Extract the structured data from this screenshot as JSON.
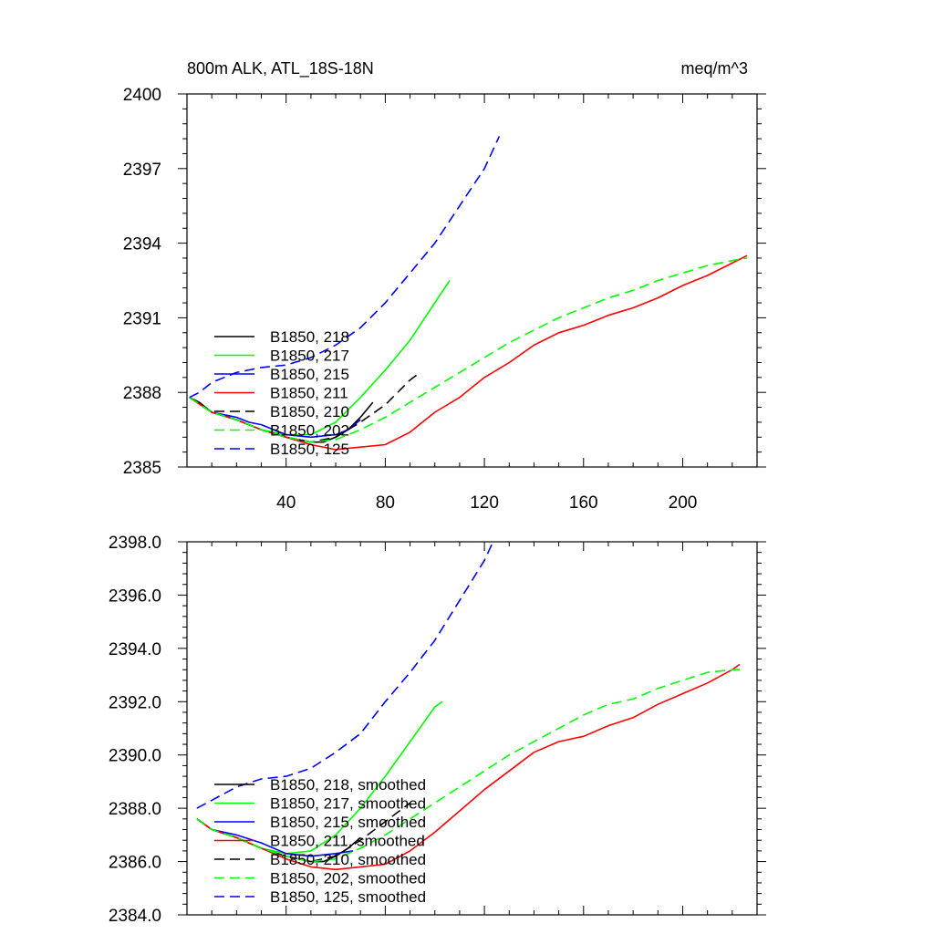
{
  "chart_data": [
    {
      "type": "line",
      "title": "800m ALK, ATL_18S-18N",
      "units": "meq/m^3",
      "xlabel": "",
      "ylabel": "",
      "xlim": [
        0,
        230
      ],
      "ylim": [
        2385,
        2400
      ],
      "xticks": [
        40,
        80,
        120,
        160,
        200
      ],
      "xtick_labels": [
        "40",
        "80",
        "120",
        "160",
        "200"
      ],
      "yticks": [
        2385,
        2388,
        2391,
        2394,
        2397,
        2400
      ],
      "ytick_labels": [
        "2385",
        "2388",
        "2391",
        "2394",
        "2397",
        "2400"
      ],
      "grid": false,
      "legend_position": "lower-left",
      "series": [
        {
          "name": "B1850, 218",
          "color": "#000000",
          "dash": "solid",
          "x": [
            1,
            5,
            10,
            20,
            30,
            40,
            50,
            55,
            60,
            65,
            70,
            75
          ],
          "y": [
            2387.8,
            2387.6,
            2387.2,
            2386.9,
            2386.5,
            2386.2,
            2386.0,
            2386.0,
            2386.2,
            2386.5,
            2387.0,
            2387.6
          ]
        },
        {
          "name": "B1850, 217",
          "color": "#00ff00",
          "dash": "solid",
          "x": [
            1,
            10,
            20,
            30,
            40,
            50,
            60,
            70,
            80,
            90,
            100,
            106
          ],
          "y": [
            2387.8,
            2387.2,
            2386.9,
            2386.5,
            2386.3,
            2386.3,
            2386.8,
            2387.8,
            2388.9,
            2390.1,
            2391.6,
            2392.5
          ]
        },
        {
          "name": "B1850, 215",
          "color": "#0000ff",
          "dash": "solid",
          "x": [
            1,
            10,
            20,
            25,
            30,
            40,
            50,
            60,
            65,
            70
          ],
          "y": [
            2387.8,
            2387.2,
            2387.0,
            2386.8,
            2386.7,
            2386.3,
            2386.2,
            2386.3,
            2386.5,
            2386.9
          ]
        },
        {
          "name": "B1850, 211",
          "color": "#ff0000",
          "dash": "solid",
          "x": [
            1,
            10,
            20,
            30,
            40,
            50,
            60,
            70,
            80,
            90,
            100,
            110,
            120,
            130,
            140,
            150,
            160,
            170,
            180,
            190,
            200,
            210,
            220,
            226
          ],
          "y": [
            2387.8,
            2387.2,
            2386.9,
            2386.5,
            2386.2,
            2385.9,
            2385.7,
            2385.8,
            2385.9,
            2386.4,
            2387.2,
            2387.8,
            2388.6,
            2389.2,
            2389.9,
            2390.4,
            2390.7,
            2391.1,
            2391.4,
            2391.8,
            2392.3,
            2392.7,
            2393.2,
            2393.5
          ]
        },
        {
          "name": "B1850, 210",
          "color": "#000000",
          "dash": "dashed",
          "x": [
            1,
            10,
            20,
            30,
            40,
            50,
            60,
            70,
            80,
            85,
            90,
            94
          ],
          "y": [
            2387.8,
            2387.2,
            2386.9,
            2386.5,
            2386.2,
            2386.0,
            2386.2,
            2386.8,
            2387.5,
            2388.0,
            2388.5,
            2388.8
          ]
        },
        {
          "name": "B1850, 202",
          "color": "#00ff00",
          "dash": "dashed",
          "x": [
            1,
            10,
            20,
            30,
            40,
            50,
            60,
            70,
            80,
            90,
            100,
            110,
            120,
            130,
            140,
            150,
            160,
            170,
            180,
            190,
            200,
            210,
            220,
            226
          ],
          "y": [
            2387.8,
            2387.2,
            2386.9,
            2386.5,
            2386.2,
            2386.0,
            2386.1,
            2386.5,
            2387.0,
            2387.6,
            2388.2,
            2388.8,
            2389.4,
            2390.0,
            2390.5,
            2391.0,
            2391.4,
            2391.8,
            2392.1,
            2392.5,
            2392.8,
            2393.1,
            2393.3,
            2393.4
          ]
        },
        {
          "name": "B1850, 125",
          "color": "#0000ff",
          "dash": "dashed",
          "x": [
            1,
            5,
            10,
            20,
            30,
            40,
            50,
            60,
            70,
            80,
            90,
            100,
            110,
            120,
            126
          ],
          "y": [
            2387.8,
            2388.0,
            2388.4,
            2388.8,
            2389.0,
            2389.1,
            2389.4,
            2389.9,
            2390.6,
            2391.6,
            2392.8,
            2394.0,
            2395.5,
            2397.0,
            2398.3
          ]
        }
      ]
    },
    {
      "type": "line",
      "title": "",
      "units": "",
      "xlabel": "",
      "ylabel": "",
      "xlim": [
        0,
        230
      ],
      "ylim": [
        2384,
        2398
      ],
      "xticks": [
        40,
        80,
        120,
        160,
        200
      ],
      "xtick_labels": [],
      "yticks": [
        2384,
        2386,
        2388,
        2390,
        2392,
        2394,
        2396,
        2398
      ],
      "ytick_labels": [
        "2384.0",
        "2386.0",
        "2388.0",
        "2390.0",
        "2392.0",
        "2394.0",
        "2396.0",
        "2398.0"
      ],
      "grid": false,
      "legend_position": "lower-left",
      "series": [
        {
          "name": "B1850, 218, smoothed",
          "color": "#000000",
          "dash": "solid",
          "x": [
            4,
            10,
            20,
            30,
            40,
            50,
            55,
            60,
            65,
            70
          ],
          "y": [
            2387.6,
            2387.2,
            2386.9,
            2386.5,
            2386.2,
            2386.0,
            2386.0,
            2386.2,
            2386.5,
            2386.9
          ]
        },
        {
          "name": "B1850, 217, smoothed",
          "color": "#00ff00",
          "dash": "solid",
          "x": [
            4,
            10,
            20,
            30,
            40,
            50,
            60,
            70,
            80,
            90,
            100,
            103
          ],
          "y": [
            2387.6,
            2387.2,
            2386.9,
            2386.5,
            2386.3,
            2386.4,
            2387.0,
            2388.0,
            2389.2,
            2390.5,
            2391.8,
            2392.0
          ]
        },
        {
          "name": "B1850, 215, smoothed",
          "color": "#0000ff",
          "dash": "solid",
          "x": [
            4,
            10,
            20,
            30,
            40,
            50,
            60,
            67
          ],
          "y": [
            2387.6,
            2387.2,
            2387.0,
            2386.7,
            2386.3,
            2386.2,
            2386.3,
            2386.4
          ]
        },
        {
          "name": "B1850, 211, smoothed",
          "color": "#ff0000",
          "dash": "solid",
          "x": [
            4,
            10,
            20,
            30,
            40,
            50,
            60,
            70,
            80,
            90,
            100,
            110,
            120,
            130,
            140,
            150,
            160,
            170,
            180,
            190,
            200,
            210,
            220,
            223
          ],
          "y": [
            2387.6,
            2387.2,
            2386.9,
            2386.5,
            2386.1,
            2385.8,
            2385.7,
            2385.8,
            2385.9,
            2386.4,
            2387.1,
            2387.9,
            2388.7,
            2389.4,
            2390.1,
            2390.5,
            2390.7,
            2391.1,
            2391.4,
            2391.9,
            2392.3,
            2392.7,
            2393.2,
            2393.4
          ]
        },
        {
          "name": "B1850, 210, smoothed",
          "color": "#000000",
          "dash": "dashed",
          "x": [
            4,
            10,
            20,
            30,
            40,
            50,
            60,
            70,
            80,
            90
          ],
          "y": [
            2387.6,
            2387.2,
            2386.9,
            2386.5,
            2386.2,
            2386.0,
            2386.2,
            2386.8,
            2387.5,
            2388.2
          ]
        },
        {
          "name": "B1850, 202, smoothed",
          "color": "#00ff00",
          "dash": "dashed",
          "x": [
            4,
            10,
            20,
            30,
            40,
            50,
            60,
            70,
            80,
            90,
            100,
            110,
            120,
            130,
            140,
            150,
            160,
            170,
            180,
            190,
            200,
            210,
            220,
            223
          ],
          "y": [
            2387.6,
            2387.2,
            2386.9,
            2386.5,
            2386.2,
            2386.0,
            2386.1,
            2386.5,
            2387.0,
            2387.6,
            2388.2,
            2388.8,
            2389.4,
            2390.0,
            2390.5,
            2391.0,
            2391.5,
            2391.9,
            2392.1,
            2392.5,
            2392.8,
            2393.1,
            2393.2,
            2393.2
          ]
        },
        {
          "name": "B1850, 125, smoothed",
          "color": "#0000ff",
          "dash": "dashed",
          "x": [
            4,
            10,
            20,
            30,
            40,
            50,
            60,
            70,
            80,
            90,
            100,
            110,
            120,
            123
          ],
          "y": [
            2388.0,
            2388.3,
            2388.8,
            2389.1,
            2389.2,
            2389.5,
            2390.1,
            2390.8,
            2392.0,
            2393.1,
            2394.3,
            2395.8,
            2397.3,
            2397.9
          ]
        }
      ]
    }
  ]
}
